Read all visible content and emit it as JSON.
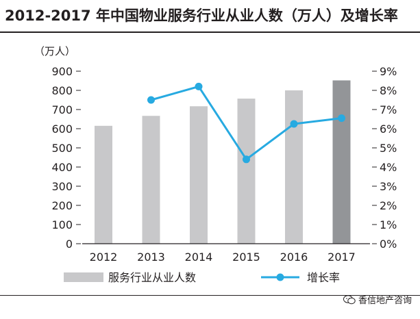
{
  "title": "2012-2017 年中国物业服务行业从业人数（万人）及增长率",
  "watermark": "香信地产咨询",
  "chart_data": {
    "type": "bar",
    "categories": [
      "2012",
      "2013",
      "2014",
      "2015",
      "2016",
      "2017"
    ],
    "series": [
      {
        "name": "服务行业从业人数",
        "type": "bar",
        "axis": "left",
        "values": [
          615,
          667,
          717,
          757,
          800,
          852
        ],
        "colors": [
          "#c8c8ca",
          "#c8c8ca",
          "#c8c8ca",
          "#c8c8ca",
          "#c8c8ca",
          "#939598"
        ]
      },
      {
        "name": "增长率",
        "type": "line",
        "axis": "right",
        "values": [
          null,
          7.5,
          8.2,
          4.4,
          6.25,
          6.55
        ],
        "color": "#27aae1"
      }
    ],
    "left_axis": {
      "unit": "（万人）",
      "ylim": [
        0,
        900
      ],
      "ticks": [
        "0",
        "100",
        "200",
        "300",
        "400",
        "500",
        "600",
        "700",
        "800",
        "900"
      ]
    },
    "right_axis": {
      "ylim": [
        0,
        9
      ],
      "ticks": [
        "0%",
        "1%",
        "2%",
        "3%",
        "4%",
        "5%",
        "6%",
        "7%",
        "8%",
        "9%"
      ]
    },
    "legend": [
      {
        "label": "服务行业从业人数",
        "kind": "bar"
      },
      {
        "label": "增长率",
        "kind": "line"
      }
    ]
  }
}
